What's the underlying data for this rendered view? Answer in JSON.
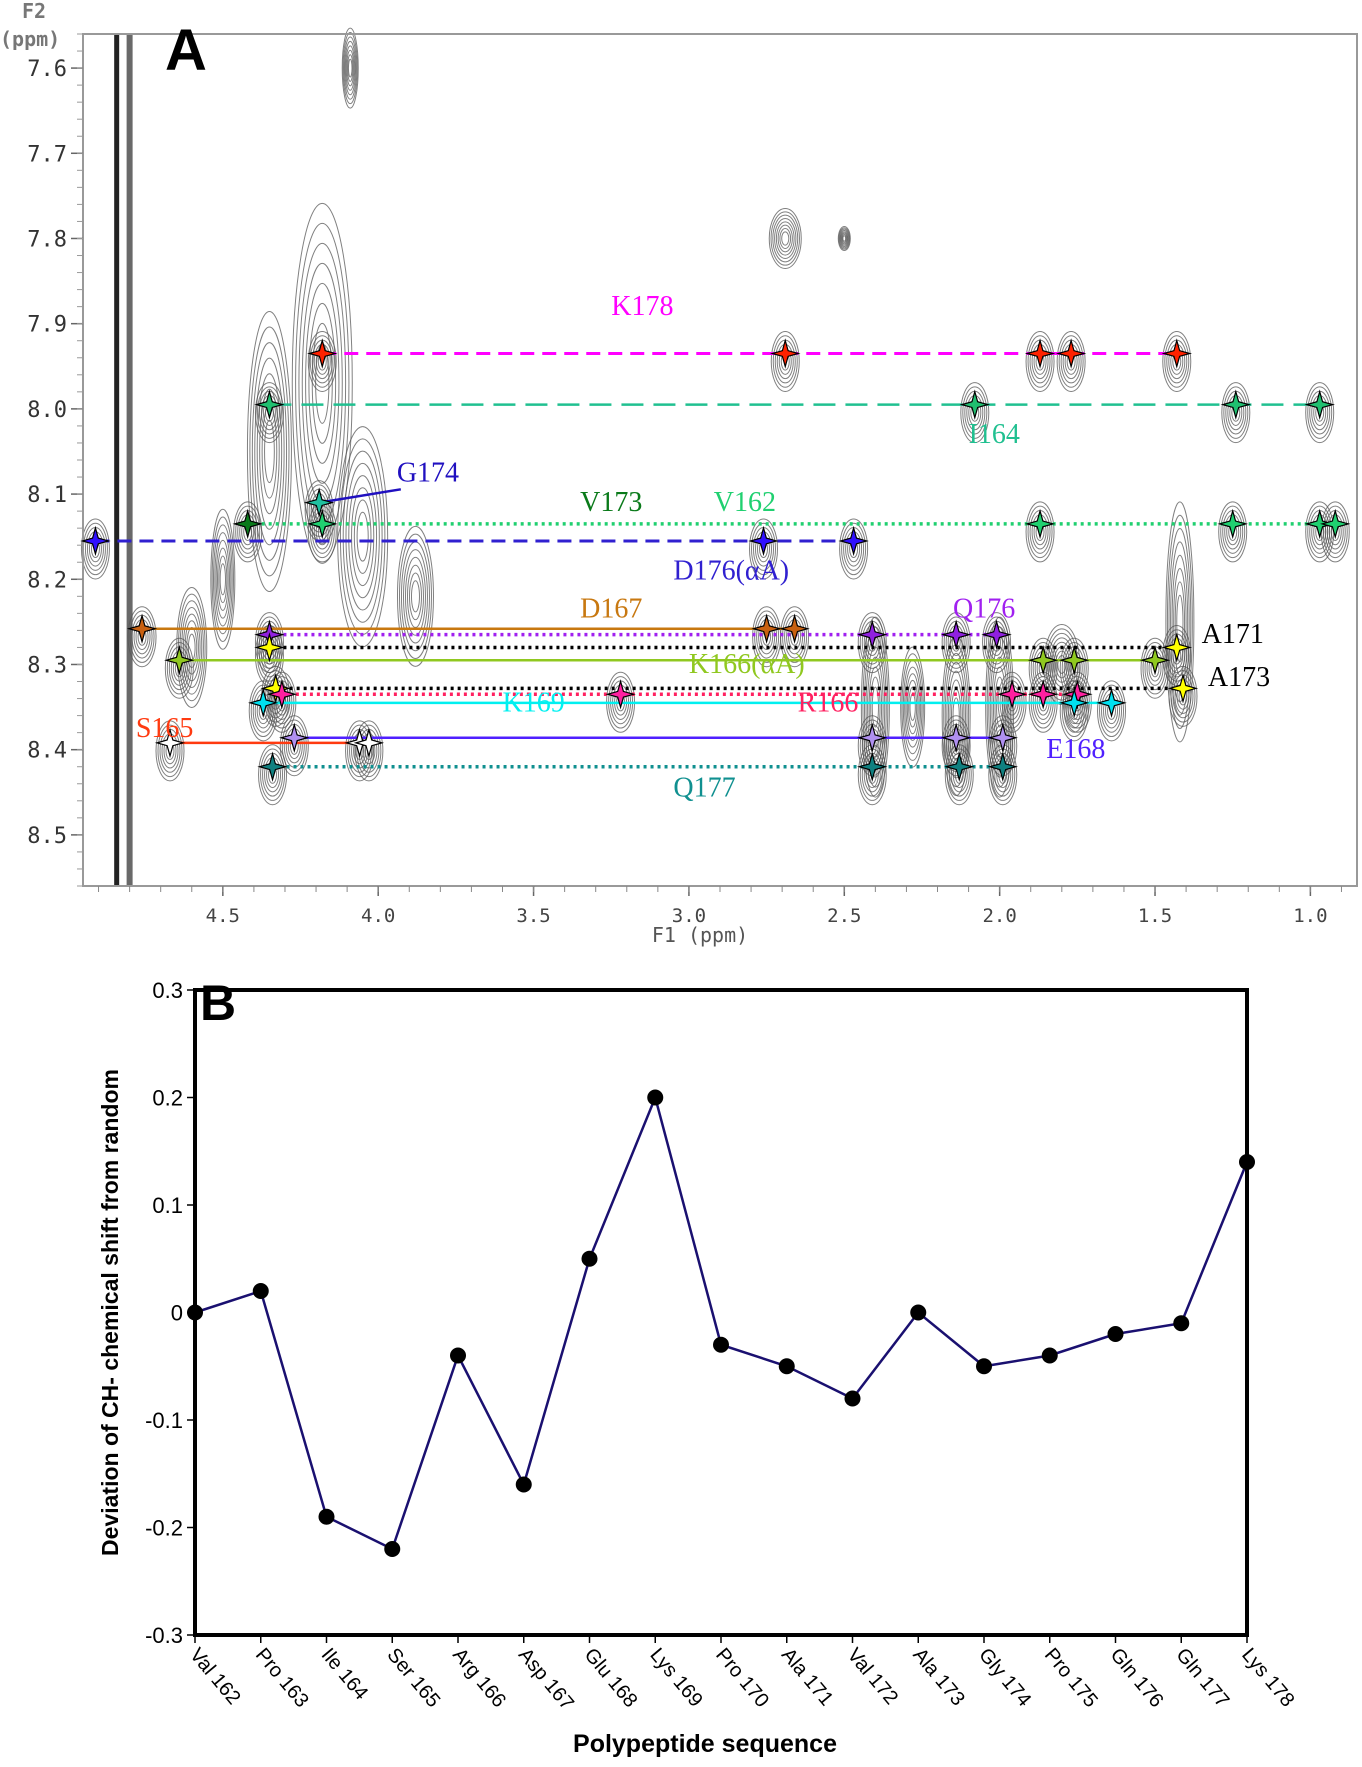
{
  "chart_data": [
    {
      "panel_label": "A",
      "type": "scatter",
      "subtype": "2D NMR TOCSY fingerprint region with sequential assignment lines",
      "xlabel": "F1 (ppm)",
      "ylabel_line1": "F2",
      "ylabel_line2": "(ppm)",
      "xlim": [
        4.95,
        0.85
      ],
      "ylim": [
        7.56,
        8.56
      ],
      "x_reversed": true,
      "y_reversed": true,
      "xticks": [
        4.5,
        4.0,
        3.5,
        3.0,
        2.5,
        2.0,
        1.5,
        1.0
      ],
      "xtick_labels": [
        "4.5",
        "4.0",
        "3.5",
        "3.0",
        "2.5",
        "2.0",
        "1.5",
        "1.0"
      ],
      "yticks": [
        7.6,
        7.7,
        7.8,
        7.9,
        8.0,
        8.1,
        8.2,
        8.3,
        8.4,
        8.5
      ],
      "ytick_labels": [
        "7.6",
        "7.7",
        "7.8",
        "7.9",
        "8.0",
        "8.1",
        "8.2",
        "8.3",
        "8.4",
        "8.5"
      ],
      "assignments": [
        {
          "label": "K178",
          "color": "#ff00ff",
          "marker_color": "#ff2200",
          "line_style": "dashed",
          "y": 7.935,
          "x_from": 4.18,
          "x_to": 1.43,
          "label_x": 3.25,
          "label_y": 7.89,
          "peaks": [
            4.18,
            2.69,
            1.87,
            1.77,
            1.43
          ]
        },
        {
          "label": "I164",
          "color": "#20c090",
          "marker_color": "#20c070",
          "line_style": "longdash",
          "y": 7.995,
          "x_from": 4.35,
          "x_to": 0.97,
          "label_x": 2.1,
          "label_y": 8.04,
          "peaks": [
            4.35,
            2.08,
            1.24,
            0.97
          ]
        },
        {
          "label": "G174",
          "color": "#2010c0",
          "marker_color": "#20c0a0",
          "line_style": "pointer",
          "y": 8.11,
          "x_from": 4.19,
          "x_to": 4.19,
          "label_x": 3.94,
          "label_y": 8.085,
          "peaks": [
            4.19
          ]
        },
        {
          "label": "V173",
          "color": "#0a7a1a",
          "marker_color": "#0a7a1a",
          "line_style": "none",
          "y": 8.135,
          "label_x": 3.35,
          "label_y": 8.12,
          "peaks": [
            4.42
          ]
        },
        {
          "label": "V162",
          "color": "#20d070",
          "marker_color": "#20d070",
          "line_style": "dotted",
          "y": 8.135,
          "x_from": 4.42,
          "x_to": 0.92,
          "label_x": 2.92,
          "label_y": 8.12,
          "peaks": [
            4.18,
            1.87,
            1.25,
            0.97,
            0.92
          ]
        },
        {
          "label": "D176(αA)",
          "color": "#3020d0",
          "marker_color": "#3010ff",
          "line_style": "dashed",
          "y": 8.155,
          "x_from": 4.91,
          "x_to": 2.47,
          "label_x": 3.05,
          "label_y": 8.2,
          "peaks": [
            4.91,
            2.76,
            2.47
          ]
        },
        {
          "label": "D167",
          "color": "#c87810",
          "marker_color": "#c86010",
          "line_style": "solid",
          "y": 8.258,
          "x_from": 4.76,
          "x_to": 2.66,
          "label_x": 3.35,
          "label_y": 8.245,
          "peaks": [
            4.76,
            2.75,
            2.66
          ]
        },
        {
          "label": "Q176",
          "color": "#a020f0",
          "marker_color": "#9020e0",
          "line_style": "dotted",
          "y": 8.265,
          "x_from": 4.35,
          "x_to": 2.01,
          "label_x": 2.15,
          "label_y": 8.245,
          "peaks": [
            4.35,
            2.41,
            2.14,
            2.01
          ]
        },
        {
          "label": "A171",
          "color": "#000000",
          "marker_color": "#ffff00",
          "line_style": "dotted",
          "y": 8.28,
          "x_from": 4.35,
          "x_to": 1.43,
          "label_x": 1.35,
          "label_y": 8.275,
          "peaks": [
            4.35,
            1.43
          ]
        },
        {
          "label": "K166(αA)",
          "color": "#90c820",
          "marker_color": "#90c820",
          "line_style": "solid",
          "y": 8.295,
          "x_from": 4.64,
          "x_to": 1.5,
          "label_x": 3.0,
          "label_y": 8.31,
          "peaks": [
            4.64,
            1.86,
            1.76,
            1.5
          ]
        },
        {
          "label": "A173",
          "color": "#000000",
          "marker_color": "#ffff00",
          "line_style": "dotted",
          "y": 8.328,
          "x_from": 4.33,
          "x_to": 1.41,
          "label_x": 1.33,
          "label_y": 8.325,
          "peaks": [
            4.33,
            1.41
          ]
        },
        {
          "label": "R166",
          "color": "#ff2060",
          "marker_color": "#ff20a0",
          "line_style": "dotted",
          "y": 8.335,
          "x_from": 4.31,
          "x_to": 1.75,
          "label_x": 2.65,
          "label_y": 8.355,
          "peaks": [
            4.31,
            3.22,
            1.96,
            1.86,
            1.75
          ]
        },
        {
          "label": "K169",
          "color": "#00f0f0",
          "marker_color": "#00e0f0",
          "line_style": "solid",
          "y": 8.345,
          "x_from": 4.37,
          "x_to": 1.64,
          "label_x": 3.6,
          "label_y": 8.355,
          "peaks": [
            4.37,
            1.76,
            1.64
          ]
        },
        {
          "label": "E168",
          "color": "#5020ff",
          "marker_color": "#b090f0",
          "line_style": "solid",
          "y": 8.386,
          "x_from": 4.27,
          "x_to": 1.99,
          "label_x": 1.85,
          "label_y": 8.41,
          "peaks": [
            4.27,
            2.41,
            2.14,
            1.99
          ]
        },
        {
          "label": "S165",
          "color": "#ff3a10",
          "marker_color": "#ffffff",
          "line_style": "solid",
          "y": 8.392,
          "x_from": 4.67,
          "x_to": 4.03,
          "label_x": 4.78,
          "label_y": 8.385,
          "peaks": [
            4.67,
            4.06,
            4.03
          ]
        },
        {
          "label": "Q177",
          "color": "#109090",
          "marker_color": "#108080",
          "line_style": "dotted",
          "y": 8.42,
          "x_from": 4.34,
          "x_to": 1.99,
          "label_x": 3.05,
          "label_y": 8.455,
          "peaks": [
            4.34,
            2.41,
            2.13,
            1.99
          ]
        }
      ]
    },
    {
      "panel_label": "B",
      "type": "line",
      "title": "",
      "xlabel": "Polypeptide sequence",
      "ylabel": "Deviation of CH- chemical shift from random",
      "ylim": [
        -0.3,
        0.3
      ],
      "yticks": [
        -0.3,
        -0.2,
        -0.1,
        0,
        0.1,
        0.2,
        0.3
      ],
      "ytick_labels": [
        "-0.3",
        "-0.2",
        "-0.1",
        "0",
        "0.1",
        "0.2",
        "0.3"
      ],
      "grid": false,
      "legend": "none",
      "line_color": "#1a1070",
      "marker_color": "#000000",
      "categories": [
        "Val 162",
        "Pro 163",
        "Ile 164",
        "Ser 165",
        "Arg 166",
        "Asp 167",
        "Glu 168",
        "Lys 169",
        "Pro 170",
        "Ala 171",
        "Val 172",
        "Ala 173",
        "Gly 174",
        "Pro 175",
        "Gln 176",
        "Gln 177",
        "Lys 178"
      ],
      "series": [
        {
          "name": "Deviation",
          "values": [
            0.0,
            0.02,
            -0.19,
            -0.22,
            -0.04,
            -0.16,
            0.05,
            0.2,
            -0.03,
            -0.05,
            -0.08,
            0.0,
            -0.05,
            -0.04,
            -0.02,
            -0.01,
            0.14
          ]
        }
      ]
    }
  ]
}
